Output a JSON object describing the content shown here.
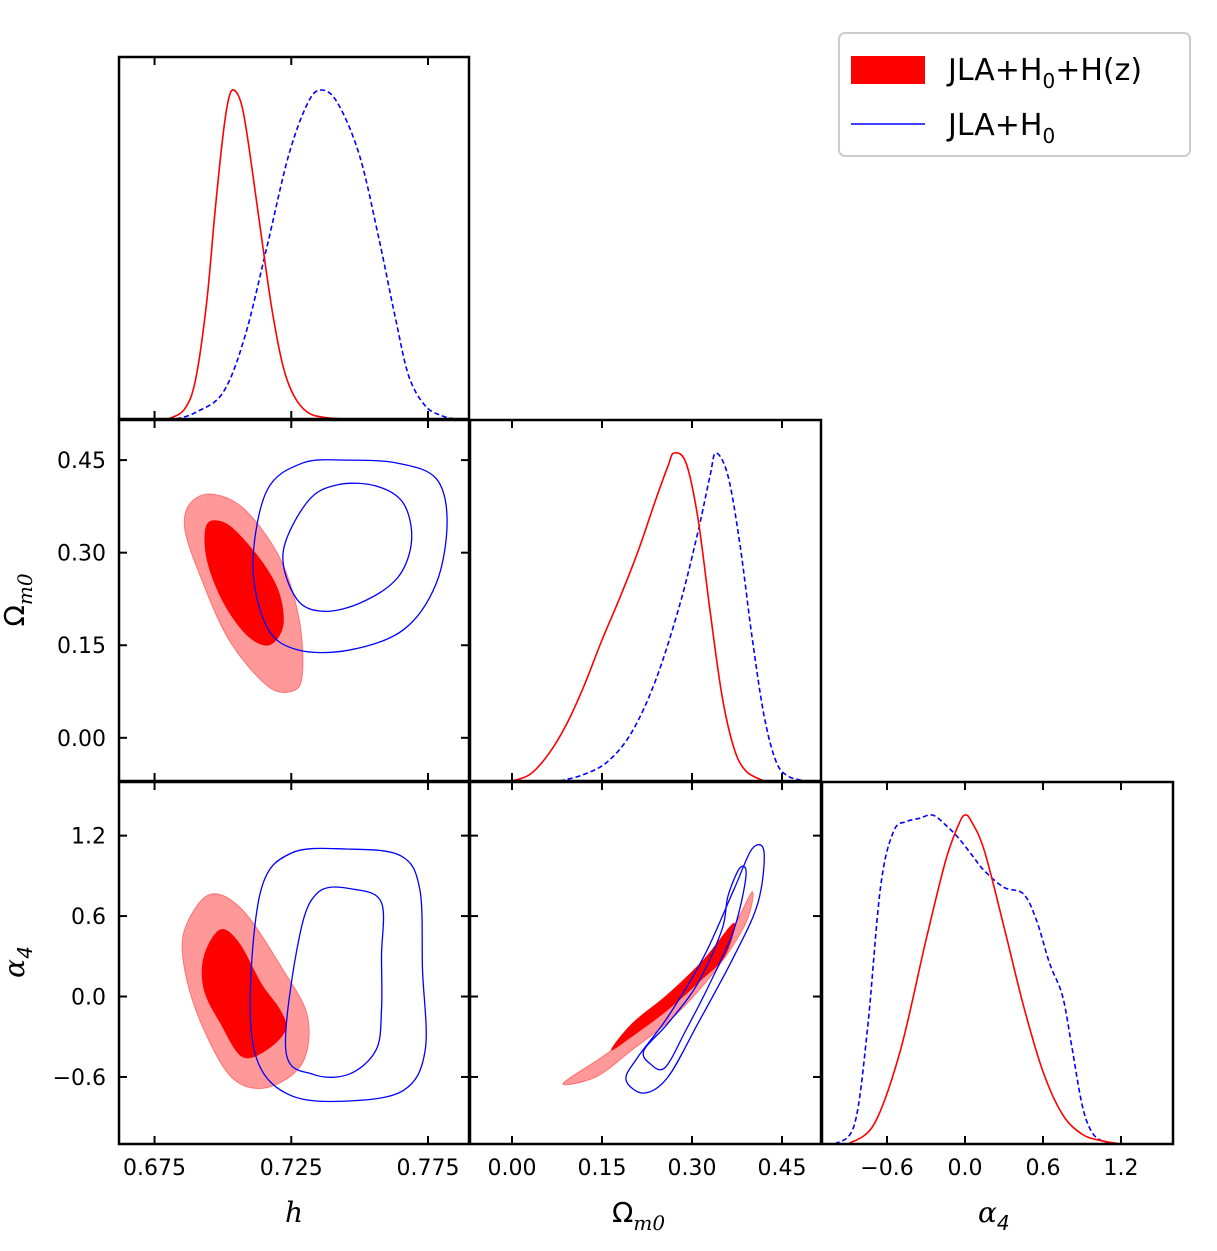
{
  "chart_data": {
    "type": "triangle-corner-plot",
    "parameters": [
      {
        "key": "h",
        "label": "h",
        "range": [
          0.662,
          0.79
        ],
        "ticks": [
          "0.675",
          "0.725",
          "0.775"
        ],
        "tick_values": [
          0.675,
          0.725,
          0.775
        ]
      },
      {
        "key": "Om",
        "label": "Ω",
        "label_sub": "m0",
        "range": [
          -0.07,
          0.515
        ],
        "ticks": [
          "0.00",
          "0.15",
          "0.30",
          "0.45"
        ],
        "tick_values": [
          0.0,
          0.15,
          0.3,
          0.45
        ]
      },
      {
        "key": "a4",
        "label": "α",
        "label_sub": "4",
        "range": [
          -1.1,
          1.6
        ],
        "ticks": [
          "−0.6",
          "0.0",
          "0.6",
          "1.2"
        ],
        "tick_values": [
          -0.6,
          0.0,
          0.6,
          1.2
        ]
      }
    ],
    "legend": {
      "placement": "top-right",
      "entries": [
        {
          "text": "JLA+H",
          "sub": "0",
          "suffix": "+H(z)",
          "style": "filled",
          "color": "#ff0000"
        },
        {
          "text": "JLA+H",
          "sub": "0",
          "suffix": "",
          "style": "dashed-line",
          "color": "#0000ff"
        }
      ]
    },
    "series": [
      {
        "name": "JLA+H0+H(z)",
        "color": "#ff0000",
        "marginals": {
          "h": {
            "x": [
              0.68,
              0.686,
              0.69,
              0.694,
              0.697,
              0.7,
              0.702,
              0.704,
              0.707,
              0.71,
              0.714,
              0.718,
              0.722,
              0.726,
              0.731,
              0.737,
              0.745
            ],
            "y": [
              0.0,
              0.03,
              0.12,
              0.35,
              0.62,
              0.86,
              0.97,
              1.0,
              0.95,
              0.8,
              0.56,
              0.33,
              0.16,
              0.07,
              0.02,
              0.005,
              0.0
            ]
          },
          "Om": {
            "x": [
              0.0,
              0.03,
              0.06,
              0.09,
              0.12,
              0.15,
              0.18,
              0.21,
              0.24,
              0.26,
              0.27,
              0.29,
              0.31,
              0.33,
              0.35,
              0.37,
              0.39,
              0.42
            ],
            "y": [
              0.0,
              0.02,
              0.08,
              0.17,
              0.29,
              0.43,
              0.56,
              0.7,
              0.86,
              0.96,
              1.0,
              0.97,
              0.8,
              0.52,
              0.26,
              0.1,
              0.03,
              0.0
            ]
          },
          "a4": {
            "x": [
              -0.9,
              -0.7,
              -0.5,
              -0.3,
              -0.15,
              -0.05,
              0.0,
              0.05,
              0.15,
              0.3,
              0.45,
              0.6,
              0.75,
              0.9,
              1.05,
              1.2
            ],
            "y": [
              0.0,
              0.06,
              0.28,
              0.62,
              0.86,
              0.97,
              1.0,
              0.98,
              0.89,
              0.66,
              0.42,
              0.22,
              0.09,
              0.03,
              0.01,
              0.0
            ]
          }
        },
        "contours": {
          "Om_vs_h": {
            "inner": [
              [
                0.694,
                0.345
              ],
              [
                0.7,
                0.35
              ],
              [
                0.707,
                0.325
              ],
              [
                0.716,
                0.275
              ],
              [
                0.721,
                0.23
              ],
              [
                0.722,
                0.18
              ],
              [
                0.717,
                0.15
              ],
              [
                0.709,
                0.165
              ],
              [
                0.7,
                0.22
              ],
              [
                0.694,
                0.29
              ]
            ],
            "outer": [
              [
                0.688,
                0.38
              ],
              [
                0.696,
                0.395
              ],
              [
                0.708,
                0.37
              ],
              [
                0.721,
                0.29
              ],
              [
                0.728,
                0.19
              ],
              [
                0.729,
                0.1
              ],
              [
                0.725,
                0.075
              ],
              [
                0.716,
                0.085
              ],
              [
                0.702,
                0.16
              ],
              [
                0.691,
                0.27
              ],
              [
                0.686,
                0.34
              ]
            ]
          },
          "a4_vs_h": {
            "inner": [
              [
                0.693,
                0.3
              ],
              [
                0.699,
                0.5
              ],
              [
                0.706,
                0.4
              ],
              [
                0.714,
                0.1
              ],
              [
                0.721,
                -0.1
              ],
              [
                0.723,
                -0.25
              ],
              [
                0.716,
                -0.4
              ],
              [
                0.707,
                -0.45
              ],
              [
                0.699,
                -0.2
              ],
              [
                0.693,
                0.05
              ]
            ],
            "outer": [
              [
                0.686,
                0.5
              ],
              [
                0.695,
                0.76
              ],
              [
                0.707,
                0.65
              ],
              [
                0.722,
                0.2
              ],
              [
                0.731,
                -0.15
              ],
              [
                0.729,
                -0.5
              ],
              [
                0.716,
                -0.68
              ],
              [
                0.703,
                -0.6
              ],
              [
                0.692,
                -0.2
              ],
              [
                0.686,
                0.2
              ]
            ]
          },
          "a4_vs_Om": {
            "inner": [
              [
                0.165,
                -0.4
              ],
              [
                0.2,
                -0.2
              ],
              [
                0.26,
                0.02
              ],
              [
                0.32,
                0.28
              ],
              [
                0.37,
                0.55
              ],
              [
                0.355,
                0.3
              ],
              [
                0.31,
                0.1
              ],
              [
                0.26,
                -0.1
              ],
              [
                0.2,
                -0.3
              ]
            ],
            "outer": [
              [
                0.085,
                -0.65
              ],
              [
                0.15,
                -0.45
              ],
              [
                0.22,
                -0.22
              ],
              [
                0.29,
                0.05
              ],
              [
                0.36,
                0.45
              ],
              [
                0.4,
                0.78
              ],
              [
                0.39,
                0.55
              ],
              [
                0.34,
                0.2
              ],
              [
                0.27,
                -0.15
              ],
              [
                0.2,
                -0.4
              ],
              [
                0.14,
                -0.6
              ]
            ]
          }
        }
      },
      {
        "name": "JLA+H0",
        "color": "#0000ff",
        "marginals": {
          "h": {
            "x": [
              0.683,
              0.69,
              0.7,
              0.708,
              0.716,
              0.724,
              0.731,
              0.736,
              0.742,
              0.75,
              0.757,
              0.763,
              0.768,
              0.774,
              0.78,
              0.785
            ],
            "y": [
              0.0,
              0.02,
              0.08,
              0.25,
              0.52,
              0.8,
              0.96,
              1.0,
              0.96,
              0.8,
              0.55,
              0.31,
              0.13,
              0.04,
              0.01,
              0.0
            ]
          },
          "Om": {
            "x": [
              0.08,
              0.12,
              0.16,
              0.2,
              0.24,
              0.28,
              0.31,
              0.33,
              0.34,
              0.36,
              0.38,
              0.4,
              0.42,
              0.44,
              0.46,
              0.49
            ],
            "y": [
              0.0,
              0.02,
              0.06,
              0.15,
              0.31,
              0.54,
              0.76,
              0.93,
              1.0,
              0.93,
              0.72,
              0.44,
              0.2,
              0.06,
              0.015,
              0.0
            ]
          },
          "a4": {
            "x": [
              -1.0,
              -0.85,
              -0.75,
              -0.65,
              -0.55,
              -0.45,
              -0.35,
              -0.25,
              -0.15,
              -0.05,
              0.05,
              0.15,
              0.3,
              0.45,
              0.55,
              0.65,
              0.75,
              0.82,
              0.9,
              0.97,
              1.05,
              1.15
            ],
            "y": [
              0.0,
              0.06,
              0.35,
              0.78,
              0.95,
              0.98,
              0.99,
              1.0,
              0.97,
              0.93,
              0.88,
              0.83,
              0.78,
              0.76,
              0.68,
              0.55,
              0.45,
              0.3,
              0.12,
              0.04,
              0.01,
              0.0
            ]
          }
        },
        "contours": {
          "Om_vs_h": {
            "inner": [
              [
                0.722,
                0.3
              ],
              [
                0.731,
                0.383
              ],
              [
                0.742,
                0.41
              ],
              [
                0.756,
                0.408
              ],
              [
                0.766,
                0.38
              ],
              [
                0.769,
                0.32
              ],
              [
                0.764,
                0.26
              ],
              [
                0.751,
                0.22
              ],
              [
                0.737,
                0.205
              ],
              [
                0.727,
                0.225
              ]
            ],
            "outer": [
              [
                0.711,
                0.28
              ],
              [
                0.716,
                0.4
              ],
              [
                0.729,
                0.445
              ],
              [
                0.745,
                0.45
              ],
              [
                0.764,
                0.445
              ],
              [
                0.778,
                0.42
              ],
              [
                0.782,
                0.35
              ],
              [
                0.778,
                0.25
              ],
              [
                0.766,
                0.175
              ],
              [
                0.746,
                0.142
              ],
              [
                0.727,
                0.143
              ],
              [
                0.716,
                0.18
              ]
            ]
          },
          "a4_vs_h": {
            "inner": [
              [
                0.723,
                -0.4
              ],
              [
                0.728,
                0.45
              ],
              [
                0.735,
                0.78
              ],
              [
                0.748,
                0.8
              ],
              [
                0.758,
                0.7
              ],
              [
                0.758,
                0.3
              ],
              [
                0.758,
                -0.1
              ],
              [
                0.756,
                -0.4
              ],
              [
                0.746,
                -0.58
              ],
              [
                0.733,
                -0.58
              ]
            ],
            "outer": [
              [
                0.71,
                0.0
              ],
              [
                0.714,
                0.8
              ],
              [
                0.725,
                1.07
              ],
              [
                0.745,
                1.1
              ],
              [
                0.765,
                1.05
              ],
              [
                0.772,
                0.8
              ],
              [
                0.773,
                0.2
              ],
              [
                0.774,
                -0.4
              ],
              [
                0.766,
                -0.7
              ],
              [
                0.745,
                -0.78
              ],
              [
                0.725,
                -0.74
              ],
              [
                0.713,
                -0.5
              ]
            ]
          },
          "a4_vs_Om": {
            "inner": [
              [
                0.23,
                -0.5
              ],
              [
                0.22,
                -0.4
              ],
              [
                0.26,
                -0.2
              ],
              [
                0.31,
                0.1
              ],
              [
                0.35,
                0.5
              ],
              [
                0.36,
                0.75
              ],
              [
                0.38,
                0.96
              ],
              [
                0.39,
                0.9
              ],
              [
                0.37,
                0.5
              ],
              [
                0.33,
                0.1
              ],
              [
                0.29,
                -0.25
              ],
              [
                0.255,
                -0.53
              ]
            ],
            "outer": [
              [
                0.19,
                -0.62
              ],
              [
                0.21,
                -0.45
              ],
              [
                0.26,
                -0.15
              ],
              [
                0.32,
                0.3
              ],
              [
                0.37,
                0.8
              ],
              [
                0.4,
                1.1
              ],
              [
                0.42,
                1.08
              ],
              [
                0.41,
                0.7
              ],
              [
                0.37,
                0.3
              ],
              [
                0.31,
                -0.2
              ],
              [
                0.26,
                -0.6
              ],
              [
                0.22,
                -0.72
              ]
            ]
          }
        }
      }
    ]
  }
}
